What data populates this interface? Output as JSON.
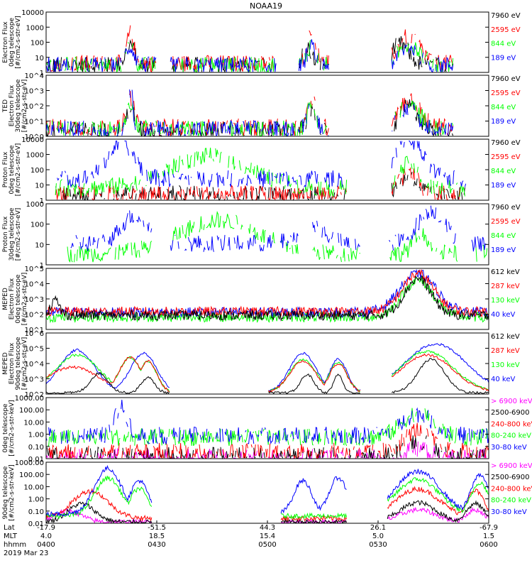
{
  "title": "NOAA19",
  "colors": {
    "black": "#000000",
    "red": "#ff0000",
    "green": "#00ff00",
    "blue": "#0000ff",
    "magenta": "#ff00ff"
  },
  "panels": [
    {
      "ylabel": [
        "Electron Flux",
        "0deg telescope",
        "[#/cm2-s-str-eV]"
      ],
      "yticks": [
        "10000",
        "1000",
        "100",
        "10",
        "1"
      ],
      "legend": [
        {
          "text": "7960 eV",
          "color": "black"
        },
        {
          "text": "2595 eV",
          "color": "red"
        },
        {
          "text": "844 eV",
          "color": "green"
        },
        {
          "text": "189 eV",
          "color": "blue"
        }
      ]
    },
    {
      "ylabel": [
        "TED",
        "Electron Flux",
        "30deg telescope",
        "[#/cm2-s-str-eV]"
      ],
      "yticks": [
        "10^4",
        "10^3",
        "10^2",
        "10^1",
        "10^0"
      ],
      "legend": [
        {
          "text": "7960 eV",
          "color": "black"
        },
        {
          "text": "2595 eV",
          "color": "red"
        },
        {
          "text": "844 eV",
          "color": "green"
        },
        {
          "text": "189 eV",
          "color": "blue"
        }
      ]
    },
    {
      "ylabel": [
        "Proton Flux",
        "0deg telescope",
        "[#/cm2-s-str-eV]"
      ],
      "yticks": [
        "10000",
        "1000",
        "100",
        "10",
        "1"
      ],
      "legend": [
        {
          "text": "7960 eV",
          "color": "black"
        },
        {
          "text": "2595 eV",
          "color": "red"
        },
        {
          "text": "844 eV",
          "color": "green"
        },
        {
          "text": "189 eV",
          "color": "blue"
        }
      ]
    },
    {
      "ylabel": [
        "Proton Flux",
        "30deg telescope",
        "[#/cm2-s-str-eV]"
      ],
      "yticks": [
        "1000",
        "100",
        "10",
        "1"
      ],
      "legend": [
        {
          "text": "7960 eV",
          "color": "black"
        },
        {
          "text": "2595 eV",
          "color": "red"
        },
        {
          "text": "844 eV",
          "color": "green"
        },
        {
          "text": "189 eV",
          "color": "blue"
        }
      ]
    },
    {
      "ylabel": [
        "MEPED",
        "Electron Flux",
        "0deg telescope",
        "[#/cm2-s-str-eV]"
      ],
      "yticks": [
        "10^5",
        "10^4",
        "10^3",
        "10^2",
        "10^1"
      ],
      "legend": [
        {
          "text": "612 keV",
          "color": "black"
        },
        {
          "text": "287 keV",
          "color": "red"
        },
        {
          "text": "130 keV",
          "color": "green"
        },
        {
          "text": "40 keV",
          "color": "blue"
        }
      ]
    },
    {
      "ylabel": [
        "MEPED",
        "Electron Flux",
        "90deg telescope",
        "[#/cm2-s-str-eV]"
      ],
      "yticks": [
        "10^6",
        "10^5",
        "10^4",
        "10^3",
        "10^2"
      ],
      "legend": [
        {
          "text": "612 keV",
          "color": "black"
        },
        {
          "text": "287 keV",
          "color": "red"
        },
        {
          "text": "130 keV",
          "color": "green"
        },
        {
          "text": "40 keV",
          "color": "blue"
        }
      ]
    },
    {
      "ylabel": [
        "0deg telescope",
        "[#/cm2-s-str-keV]"
      ],
      "yticks": [
        "1000.00",
        "100.00",
        "10.00",
        "1.00",
        "0.10",
        "0.01"
      ],
      "legend": [
        {
          "text": "> 6900 keV",
          "color": "magenta"
        },
        {
          "text": "2500-6900",
          "color": "black"
        },
        {
          "text": "240-800 keV",
          "color": "red"
        },
        {
          "text": "80-240 keV",
          "color": "green"
        },
        {
          "text": "30-80 keV",
          "color": "blue"
        }
      ]
    },
    {
      "ylabel": [
        "90deg telescope",
        "[#/cm2-s-str-keV]"
      ],
      "yticks": [
        "1000.00",
        "100.00",
        "10.00",
        "1.00",
        "0.10",
        "0.01"
      ],
      "legend": [
        {
          "text": "> 6900 keV",
          "color": "magenta"
        },
        {
          "text": "2500-6900",
          "color": "black"
        },
        {
          "text": "240-800 keV",
          "color": "red"
        },
        {
          "text": "80-240 keV",
          "color": "green"
        },
        {
          "text": "30-80 keV",
          "color": "blue"
        }
      ]
    }
  ],
  "xaxis": {
    "row_labels": [
      "Lat",
      "MLT",
      "hhmm"
    ],
    "date": "2019 Mar 23",
    "ticks": [
      {
        "lat": "-17.9",
        "mlt": "4.0",
        "hhmm": "0400"
      },
      {
        "lat": "-51.5",
        "mlt": "18.5",
        "hhmm": "0430"
      },
      {
        "lat": "44.3",
        "mlt": "15.4",
        "hhmm": "0500"
      },
      {
        "lat": "26.1",
        "mlt": "5.0",
        "hhmm": "0530"
      },
      {
        "lat": "-67.9",
        "mlt": "1.5",
        "hhmm": "0600"
      }
    ]
  },
  "chart_data": {
    "type": "line",
    "title": "NOAA19",
    "x_unit": "hhmm",
    "x_range": [
      "0400",
      "0600"
    ],
    "yscale": "log",
    "panels": [
      {
        "ylabel": "Electron Flux 0deg telescope [#/cm2-s-str-eV]",
        "ylim": [
          1,
          10000
        ],
        "series": [
          "7960 eV",
          "2595 eV",
          "844 eV",
          "189 eV"
        ]
      },
      {
        "ylabel": "TED Electron Flux 30deg telescope [#/cm2-s-str-eV]",
        "ylim": [
          1,
          10000
        ],
        "series": [
          "7960 eV",
          "2595 eV",
          "844 eV",
          "189 eV"
        ]
      },
      {
        "ylabel": "Proton Flux 0deg telescope [#/cm2-s-str-eV]",
        "ylim": [
          1,
          10000
        ],
        "series": [
          "7960 eV",
          "2595 eV",
          "844 eV",
          "189 eV"
        ]
      },
      {
        "ylabel": "Proton Flux 30deg telescope [#/cm2-s-str-eV]",
        "ylim": [
          1,
          1000
        ],
        "series": [
          "7960 eV",
          "2595 eV",
          "844 eV",
          "189 eV"
        ]
      },
      {
        "ylabel": "MEPED Electron Flux 0deg telescope [#/cm2-s-str-eV]",
        "ylim": [
          10,
          100000
        ],
        "series": [
          "612 keV",
          "287 keV",
          "130 keV",
          "40 keV"
        ]
      },
      {
        "ylabel": "MEPED Electron Flux 90deg telescope [#/cm2-s-str-eV]",
        "ylim": [
          100,
          1000000
        ],
        "series": [
          "612 keV",
          "287 keV",
          "130 keV",
          "40 keV"
        ]
      },
      {
        "ylabel": "0deg telescope [#/cm2-s-str-keV]",
        "ylim": [
          0.01,
          1000
        ],
        "series": [
          "> 6900 keV",
          "2500-6900",
          "240-800 keV",
          "80-240 keV",
          "30-80 keV"
        ]
      },
      {
        "ylabel": "90deg telescope [#/cm2-s-str-keV]",
        "ylim": [
          0.01,
          1000
        ],
        "series": [
          "> 6900 keV",
          "2500-6900",
          "240-800 keV",
          "80-240 keV",
          "30-80 keV"
        ]
      }
    ]
  }
}
